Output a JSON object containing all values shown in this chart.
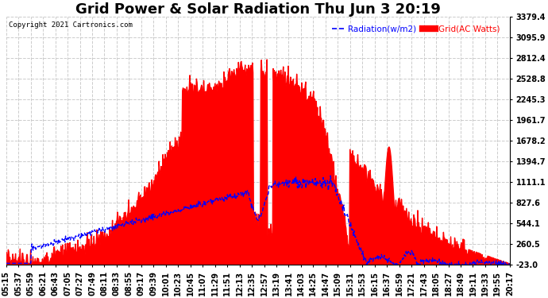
{
  "title": "Grid Power & Solar Radiation Thu Jun 3 20:19",
  "copyright": "Copyright 2021 Cartronics.com",
  "legend_radiation": "Radiation(w/m2)",
  "legend_grid": "Grid(AC Watts)",
  "legend_radiation_color": "blue",
  "legend_grid_color": "red",
  "y_min": -23.0,
  "y_max": 3379.4,
  "y_ticks": [
    -23.0,
    260.5,
    544.1,
    827.6,
    1111.1,
    1394.7,
    1678.2,
    1961.7,
    2245.3,
    2528.8,
    2812.4,
    3095.9,
    3379.4
  ],
  "background_color": "#ffffff",
  "plot_background": "#ffffff",
  "grid_color": "#cccccc",
  "x_labels": [
    "05:15",
    "05:37",
    "05:59",
    "06:21",
    "06:43",
    "07:05",
    "07:27",
    "07:49",
    "08:11",
    "08:33",
    "08:55",
    "09:17",
    "09:39",
    "10:01",
    "10:23",
    "10:45",
    "11:07",
    "11:29",
    "11:51",
    "12:13",
    "12:35",
    "12:57",
    "13:19",
    "13:41",
    "14:03",
    "14:25",
    "14:47",
    "15:09",
    "15:31",
    "15:53",
    "16:15",
    "16:37",
    "16:59",
    "17:21",
    "17:43",
    "18:05",
    "18:27",
    "18:49",
    "19:11",
    "19:33",
    "19:55",
    "20:17"
  ],
  "title_fontsize": 13,
  "tick_fontsize": 7,
  "label_fontsize": 8
}
